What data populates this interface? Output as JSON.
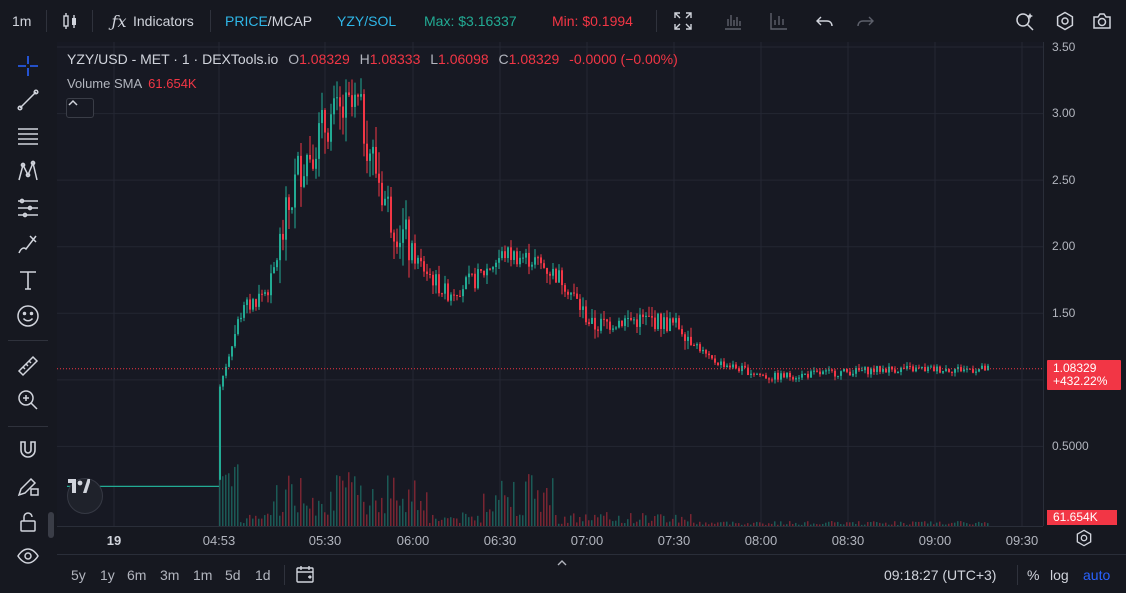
{
  "toolbar": {
    "interval": "1m",
    "indicators_label": "Indicators",
    "price_label": "PRICE",
    "slash": "/",
    "mcap_label": "MCAP",
    "pair_label": "YZY/SOL",
    "max_label": "Max: $3.16337",
    "min_label": "Min: $0.1994",
    "colors": {
      "price": "#2fb7e8",
      "pair": "#2fb7e8",
      "max": "#22ab94",
      "min": "#f23645"
    }
  },
  "legend": {
    "symbol": "YZY/USD - MET · 1 · DEXTools.io",
    "o_key": "O",
    "o_val": "1.08329",
    "h_key": "H",
    "h_val": "1.08333",
    "l_key": "L",
    "l_val": "1.06098",
    "c_key": "C",
    "c_val": "1.08329",
    "change": "-0.0000 (−0.00%)",
    "volume_label": "Volume SMA",
    "volume_val": "61.654K"
  },
  "price_axis": {
    "ticks": [
      "3.50",
      "3.00",
      "2.50",
      "2.00",
      "1.50",
      "0.5000"
    ],
    "last_price": "1.08329",
    "last_change": "+432.22%",
    "volume_tag": "61.654K"
  },
  "time_axis": {
    "ticks": [
      "19",
      "04:53",
      "05:30",
      "06:00",
      "06:30",
      "07:00",
      "07:30",
      "08:00",
      "08:30",
      "09:00",
      "09:30"
    ]
  },
  "bottom": {
    "ranges": [
      "5y",
      "1y",
      "6m",
      "3m",
      "1m",
      "5d",
      "1d"
    ],
    "clock": "09:18:27 (UTC+3)",
    "percent": "%",
    "log": "log",
    "auto": "auto"
  },
  "chart_data": {
    "type": "candlestick",
    "xlabel": "",
    "ylabel": "",
    "ylim": [
      0,
      3.5
    ],
    "x": [
      "04:53",
      "05:00",
      "05:10",
      "05:20",
      "05:30",
      "05:40",
      "05:50",
      "06:00",
      "06:10",
      "06:20",
      "06:30",
      "06:40",
      "06:50",
      "07:00",
      "07:10",
      "07:20",
      "07:30",
      "07:40",
      "08:00",
      "08:20",
      "08:40",
      "09:00",
      "09:15"
    ],
    "close": [
      0.95,
      1.5,
      1.7,
      2.6,
      2.95,
      3.05,
      2.3,
      1.9,
      1.65,
      1.75,
      1.95,
      1.9,
      1.75,
      1.4,
      1.45,
      1.45,
      1.4,
      1.15,
      1.02,
      1.05,
      1.08,
      1.08,
      1.08
    ],
    "colors": {
      "up": "#22ab94",
      "down": "#f23645"
    }
  }
}
